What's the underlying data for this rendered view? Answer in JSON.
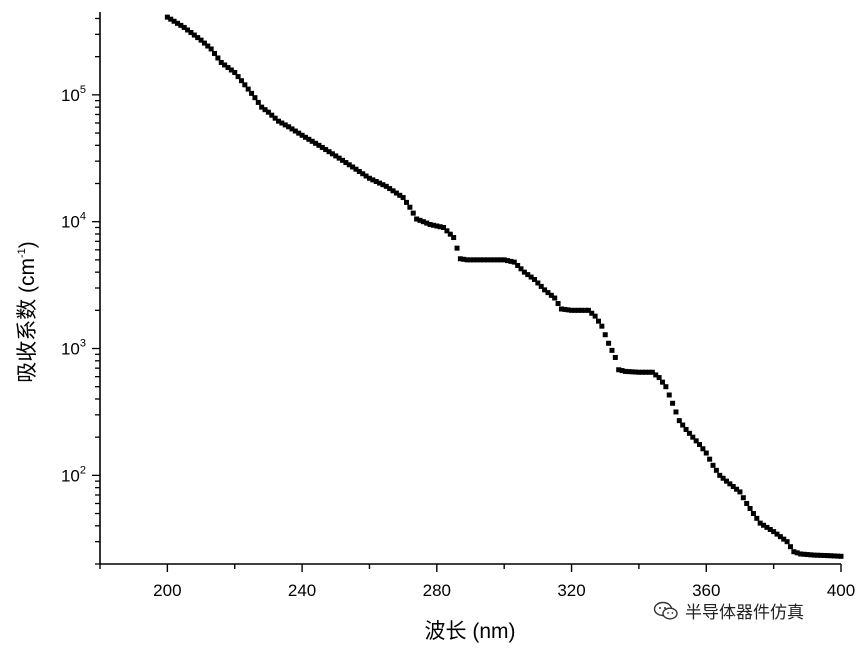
{
  "chart_data": {
    "type": "scatter",
    "xlabel": "波长 (nm)",
    "ylabel": "吸收系数 (cm",
    "ylabel_sup": "-1",
    "ylabel_close": ")",
    "xlim": [
      180,
      400
    ],
    "ylim": [
      20,
      450000
    ],
    "yscale": "log",
    "x_ticks": [
      200,
      240,
      280,
      320,
      360,
      400
    ],
    "y_ticks": [
      {
        "value": 100,
        "base": "10",
        "exp": "2"
      },
      {
        "value": 1000,
        "base": "10",
        "exp": "3"
      },
      {
        "value": 10000,
        "base": "10",
        "exp": "4"
      },
      {
        "value": 100000,
        "base": "10",
        "exp": "5"
      }
    ],
    "grid": false,
    "marker_color": "#000000",
    "series": [
      {
        "x": [
          200,
          205,
          210,
          213,
          216,
          220,
          223,
          226,
          228,
          230,
          233,
          236,
          240,
          245,
          250,
          255,
          260,
          265,
          270,
          272,
          274,
          276,
          278,
          282,
          285,
          287,
          289,
          292,
          296,
          300,
          303,
          306,
          309,
          312,
          315,
          317,
          320,
          322,
          325,
          327,
          329,
          331,
          333,
          334,
          336,
          340,
          344,
          346,
          348,
          350,
          352,
          354,
          356,
          358,
          360,
          362,
          364,
          366,
          370,
          372,
          374,
          376,
          380,
          384,
          386,
          388,
          392,
          396,
          400
        ],
        "y": [
          410000,
          340000,
          270000,
          230000,
          180000,
          150000,
          120000,
          95000,
          80000,
          73000,
          62000,
          56000,
          48000,
          40000,
          33000,
          27000,
          22000,
          19000,
          15500,
          13000,
          10500,
          10000,
          9500,
          9000,
          7500,
          5100,
          5000,
          5000,
          5000,
          5000,
          4800,
          4000,
          3500,
          2900,
          2500,
          2050,
          2000,
          2000,
          2000,
          1800,
          1500,
          1100,
          850,
          680,
          660,
          650,
          650,
          590,
          500,
          370,
          270,
          230,
          200,
          175,
          150,
          120,
          100,
          90,
          74,
          60,
          50,
          42,
          36,
          30,
          25,
          24,
          23.5,
          23.3,
          23
        ]
      }
    ]
  },
  "watermark": {
    "text": "半导体器件仿真",
    "icon": "wechat-icon"
  }
}
